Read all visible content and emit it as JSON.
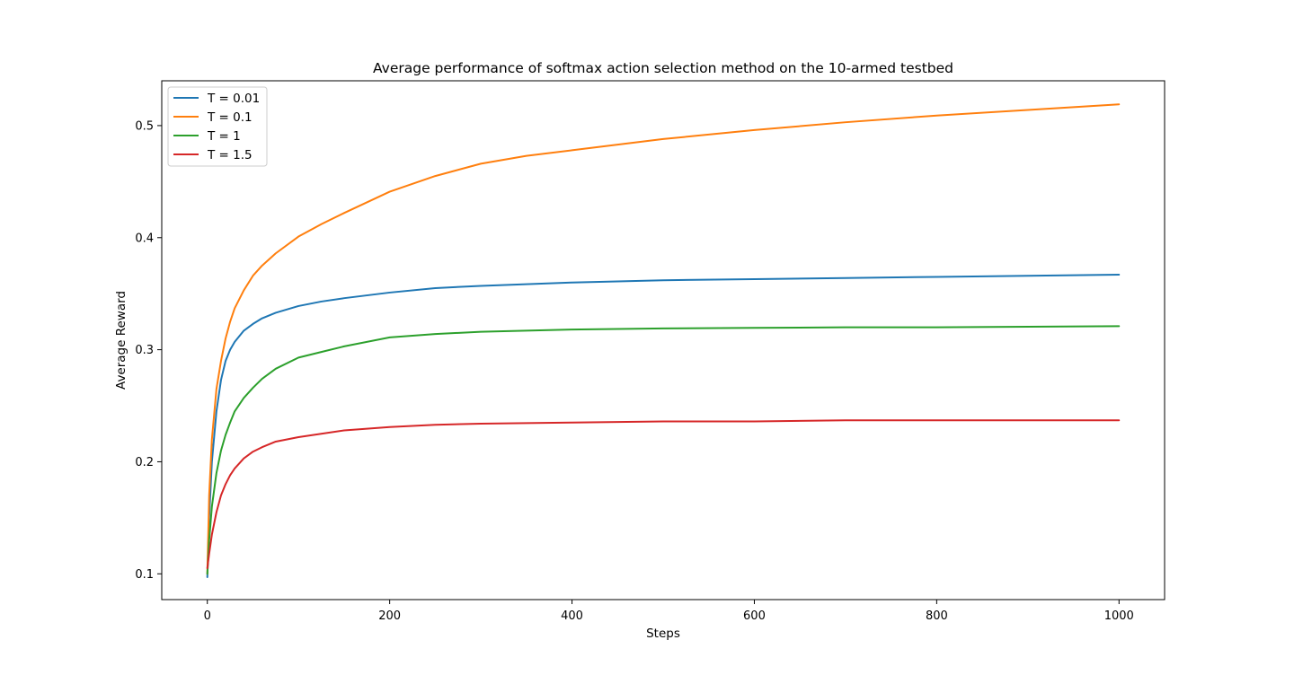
{
  "chart_data": {
    "type": "line",
    "title": "Average performance of softmax action selection method on the 10-armed testbed",
    "xlabel": "Steps",
    "ylabel": "Average Reward",
    "xlim": [
      -50,
      1050
    ],
    "ylim": [
      0.077,
      0.54
    ],
    "xticks": [
      0,
      200,
      400,
      600,
      800,
      1000
    ],
    "yticks": [
      0.1,
      0.2,
      0.3,
      0.4,
      0.5
    ],
    "xtick_labels": [
      "0",
      "200",
      "400",
      "600",
      "800",
      "1000"
    ],
    "ytick_labels": [
      "0.1",
      "0.2",
      "0.3",
      "0.4",
      "0.5"
    ],
    "grid": false,
    "legend_position": "top-left",
    "series": [
      {
        "name": "T = 0.01",
        "color": "#1f77b4",
        "x": [
          0,
          2,
          5,
          10,
          15,
          20,
          25,
          30,
          40,
          50,
          60,
          75,
          100,
          125,
          150,
          200,
          250,
          300,
          400,
          500,
          600,
          700,
          800,
          900,
          1000
        ],
        "y": [
          0.097,
          0.15,
          0.2,
          0.245,
          0.273,
          0.29,
          0.3,
          0.307,
          0.317,
          0.323,
          0.328,
          0.333,
          0.339,
          0.343,
          0.346,
          0.351,
          0.355,
          0.357,
          0.36,
          0.362,
          0.363,
          0.364,
          0.365,
          0.366,
          0.367
        ]
      },
      {
        "name": "T = 0.1",
        "color": "#ff7f0e",
        "x": [
          0,
          2,
          5,
          10,
          15,
          20,
          25,
          30,
          40,
          50,
          60,
          75,
          100,
          125,
          150,
          200,
          250,
          300,
          350,
          400,
          500,
          600,
          700,
          800,
          900,
          1000
        ],
        "y": [
          0.1,
          0.17,
          0.22,
          0.265,
          0.29,
          0.31,
          0.325,
          0.337,
          0.353,
          0.366,
          0.375,
          0.386,
          0.401,
          0.412,
          0.422,
          0.441,
          0.455,
          0.466,
          0.473,
          0.478,
          0.488,
          0.496,
          0.503,
          0.509,
          0.514,
          0.519
        ]
      },
      {
        "name": "T = 1",
        "color": "#2ca02c",
        "x": [
          0,
          2,
          5,
          10,
          15,
          20,
          25,
          30,
          40,
          50,
          60,
          75,
          100,
          125,
          150,
          200,
          250,
          300,
          400,
          500,
          600,
          700,
          800,
          900,
          1000
        ],
        "y": [
          0.1,
          0.13,
          0.16,
          0.19,
          0.21,
          0.224,
          0.235,
          0.245,
          0.257,
          0.266,
          0.274,
          0.283,
          0.293,
          0.298,
          0.303,
          0.311,
          0.314,
          0.316,
          0.318,
          0.319,
          0.3195,
          0.32,
          0.32,
          0.3205,
          0.321
        ]
      },
      {
        "name": "T = 1.5",
        "color": "#d62728",
        "x": [
          0,
          2,
          5,
          10,
          15,
          20,
          25,
          30,
          40,
          50,
          60,
          75,
          100,
          125,
          150,
          200,
          250,
          300,
          400,
          500,
          600,
          700,
          800,
          900,
          1000
        ],
        "y": [
          0.105,
          0.118,
          0.135,
          0.155,
          0.17,
          0.18,
          0.188,
          0.194,
          0.203,
          0.209,
          0.213,
          0.218,
          0.222,
          0.225,
          0.228,
          0.231,
          0.233,
          0.234,
          0.235,
          0.236,
          0.236,
          0.237,
          0.237,
          0.237,
          0.237
        ]
      }
    ]
  }
}
